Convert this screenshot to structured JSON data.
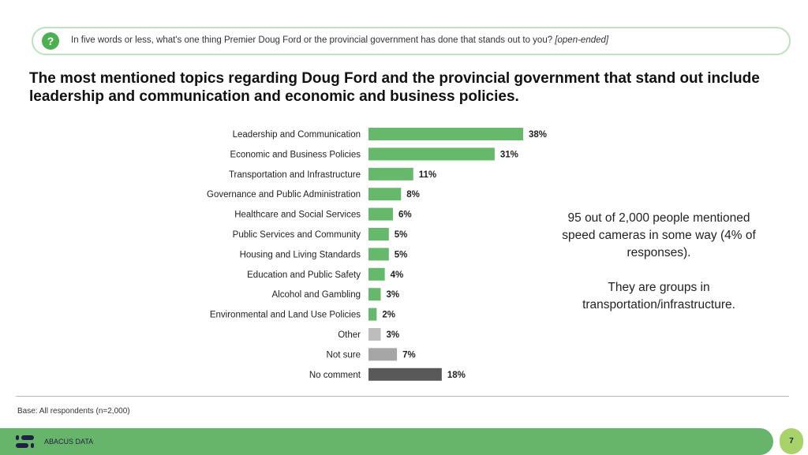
{
  "question": {
    "icon": "question-icon",
    "text": "In five words or less, what's one thing Premier Doug Ford or the provincial government has done that stands out to you?",
    "tag": "[open-ended]"
  },
  "headline": "The most mentioned topics regarding Doug Ford and the provincial government that stand out include leadership and communication and economic and business policies.",
  "chart_data": {
    "type": "bar",
    "orientation": "horizontal",
    "categories": [
      "Leadership and Communication",
      "Economic and Business Policies",
      "Transportation and Infrastructure",
      "Governance and Public Administration",
      "Healthcare and Social Services",
      "Public Services and Community",
      "Housing and Living Standards",
      "Education and Public Safety",
      "Alcohol and Gambling",
      "Environmental and Land Use Policies",
      "Other",
      "Not sure",
      "No comment"
    ],
    "values": [
      38,
      31,
      11,
      8,
      6,
      5,
      5,
      4,
      3,
      2,
      3,
      7,
      18
    ],
    "labels": [
      "38%",
      "31%",
      "11%",
      "8%",
      "6%",
      "5%",
      "5%",
      "4%",
      "3%",
      "2%",
      "3%",
      "7%",
      "18%"
    ],
    "colors": [
      "#66b96a",
      "#66b96a",
      "#66b96a",
      "#66b96a",
      "#66b96a",
      "#66b96a",
      "#66b96a",
      "#66b96a",
      "#66b96a",
      "#66b96a",
      "#bdbdbd",
      "#a6a6a6",
      "#595959"
    ],
    "unit": "%",
    "grid": false
  },
  "note": {
    "line1": "95 out of 2,000 people mentioned speed cameras in some way (4% of responses).",
    "line2": "They are groups in transportation/infrastructure."
  },
  "base": "Base: All respondents (n=2,000)",
  "footer": {
    "brand": "ABACUS DATA",
    "page": "7",
    "color": "#66b56a"
  }
}
